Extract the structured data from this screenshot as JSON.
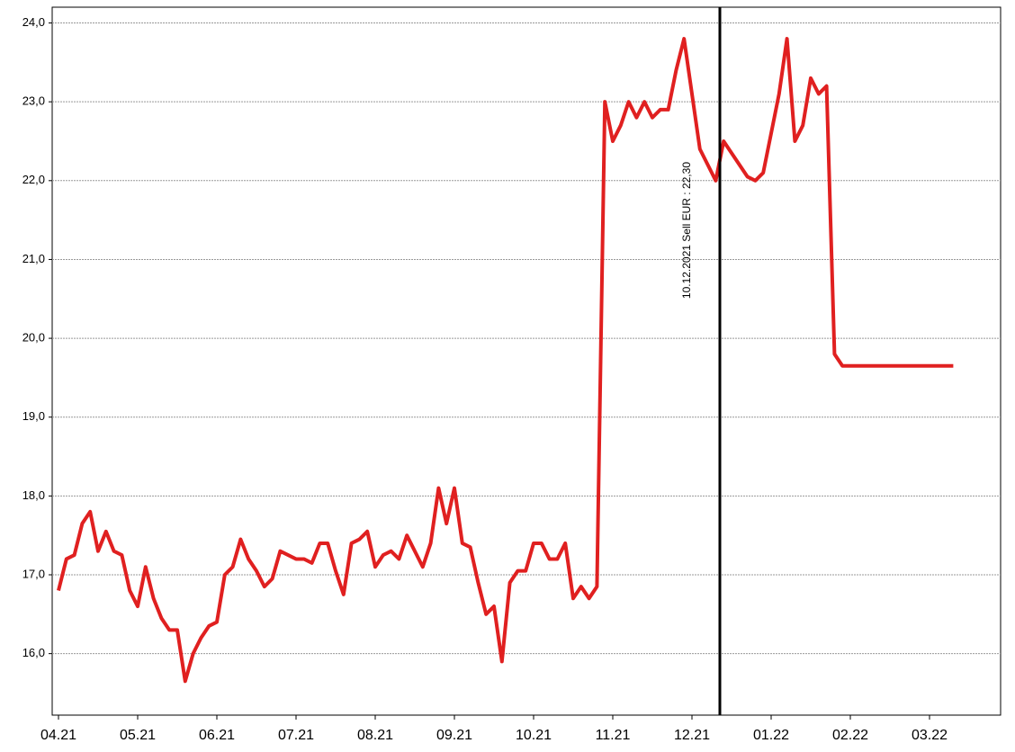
{
  "chart_data": {
    "type": "line",
    "annotation": "10.12.2021 Sell EUR : 22,30",
    "categories": [
      "04.21",
      null,
      null,
      null,
      null,
      null,
      null,
      null,
      null,
      null,
      "05.21",
      null,
      null,
      null,
      null,
      null,
      null,
      null,
      null,
      null,
      "06.21",
      null,
      null,
      null,
      null,
      null,
      null,
      null,
      null,
      null,
      "07.21",
      null,
      null,
      null,
      null,
      null,
      null,
      null,
      null,
      null,
      "08.21",
      null,
      null,
      null,
      null,
      null,
      null,
      null,
      null,
      null,
      "09.21",
      null,
      null,
      null,
      null,
      null,
      null,
      null,
      null,
      null,
      "10.21",
      null,
      null,
      null,
      null,
      null,
      null,
      null,
      null,
      null,
      "11.21",
      null,
      null,
      null,
      null,
      null,
      null,
      null,
      null,
      null,
      "12.21",
      null,
      null,
      null,
      null,
      null,
      null,
      null,
      null,
      null,
      "01.22",
      null,
      null,
      null,
      null,
      null,
      null,
      null,
      null,
      null,
      "02.22",
      null,
      null,
      null,
      null,
      null,
      null,
      null,
      null,
      null,
      "03.22",
      null,
      null,
      null
    ],
    "series": [
      {
        "color": "#e02020",
        "values": [
          16.8,
          17.2,
          17.25,
          17.65,
          17.8,
          17.3,
          17.55,
          17.3,
          17.25,
          16.8,
          16.6,
          17.1,
          16.7,
          16.45,
          16.3,
          16.3,
          15.65,
          16.0,
          16.2,
          16.35,
          16.4,
          17.0,
          17.1,
          17.45,
          17.2,
          17.05,
          16.85,
          16.95,
          17.3,
          17.25,
          17.2,
          17.2,
          17.15,
          17.4,
          17.4,
          17.05,
          16.75,
          17.4,
          17.45,
          17.55,
          17.1,
          17.25,
          17.3,
          17.2,
          17.5,
          17.3,
          17.1,
          17.4,
          18.1,
          17.65,
          18.1,
          17.4,
          17.35,
          16.9,
          16.5,
          16.6,
          15.9,
          16.9,
          17.05,
          17.05,
          17.4,
          17.4,
          17.2,
          17.2,
          17.4,
          16.7,
          16.85,
          16.7,
          16.85,
          23.0,
          22.5,
          22.7,
          23.0,
          22.8,
          23.0,
          22.8,
          22.9,
          22.9,
          23.4,
          23.8,
          23.1,
          22.4,
          22.2,
          22.0,
          22.5,
          22.35,
          22.2,
          22.05,
          22.0,
          22.1,
          22.6,
          23.1,
          23.8,
          22.5,
          22.7,
          23.3,
          23.1,
          23.2,
          19.8,
          19.65,
          19.65,
          19.65,
          19.65,
          19.65,
          19.65,
          19.65,
          19.65,
          19.65,
          19.65,
          19.65,
          19.65,
          19.65,
          19.65,
          19.65
        ]
      }
    ],
    "ylim": [
      15.22,
      24.2
    ],
    "yticks": [
      {
        "value": 16,
        "label": "16,0"
      },
      {
        "value": 17,
        "label": "17,0"
      },
      {
        "value": 18,
        "label": "18,0"
      },
      {
        "value": 19,
        "label": "19,0"
      },
      {
        "value": 20,
        "label": "20,0"
      },
      {
        "value": 21,
        "label": "21,0"
      },
      {
        "value": 22,
        "label": "22,0"
      },
      {
        "value": 23,
        "label": "23,0"
      },
      {
        "value": 24,
        "label": "24,0"
      }
    ],
    "grid": true
  }
}
